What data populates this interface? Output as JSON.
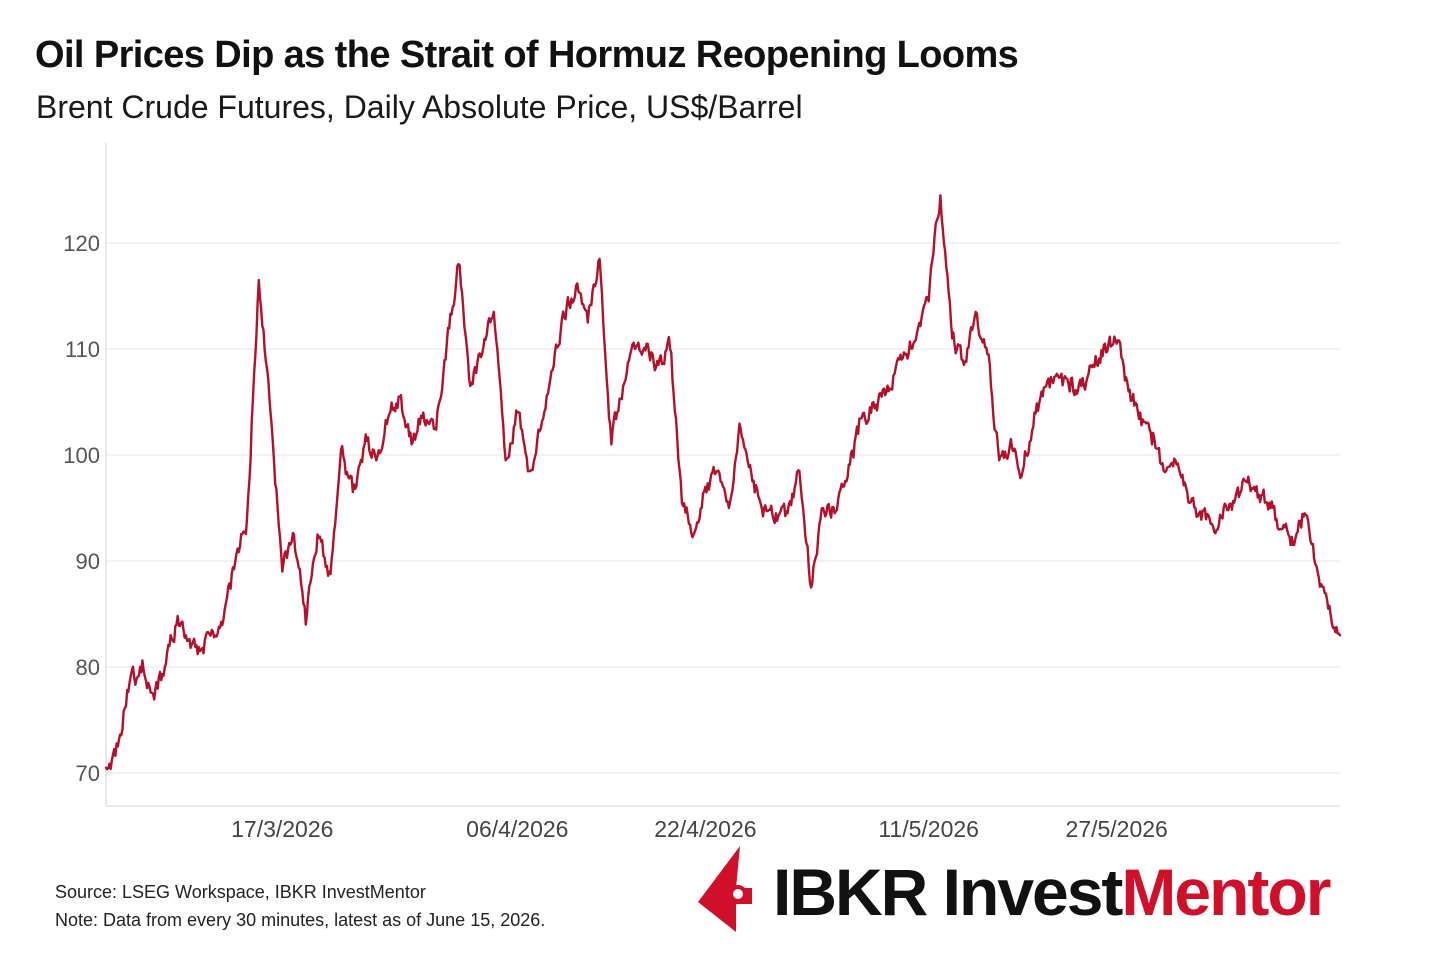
{
  "header": {
    "title": "Oil Prices Dip as the Strait of Hormuz Reopening Looms",
    "subtitle": "Brent Crude Futures, Daily Absolute Price, US$/Barrel"
  },
  "footer": {
    "source": "Source: LSEG Workspace, IBKR InvestMentor",
    "note": "Note: Data from every 30 minutes, latest as of June 15, 2026."
  },
  "brand": {
    "name_part1": "IBKR Invest",
    "name_part2": "Mentor",
    "accent_color": "#d0102a",
    "icon": "ibkr-flag-icon"
  },
  "chart_data": {
    "type": "line",
    "title": "Oil Prices Dip as the Strait of Hormuz Reopening Looms",
    "subtitle": "Brent Crude Futures, Daily Absolute Price, US$/Barrel",
    "xlabel": "",
    "ylabel": "",
    "ylim": [
      67,
      128
    ],
    "yticks": [
      70,
      80,
      90,
      100,
      110,
      120
    ],
    "xticks": [
      "17/3/2026",
      "06/4/2026",
      "22/4/2026",
      "11/5/2026",
      "27/5/2026"
    ],
    "grid": "horizontal",
    "legend": "none",
    "series": [
      {
        "color": "#b5102a",
        "points": [
          [
            "2026-03-02",
            70.5
          ],
          [
            "2026-03-03",
            72.5
          ],
          [
            "2026-03-04",
            78.5
          ],
          [
            "2026-03-05",
            79.5
          ],
          [
            "2026-03-06",
            77.5
          ],
          [
            "2026-03-07",
            80.0
          ],
          [
            "2026-03-08",
            84.0
          ],
          [
            "2026-03-09",
            82.5
          ],
          [
            "2026-03-10",
            81.5
          ],
          [
            "2026-03-11",
            83.5
          ],
          [
            "2026-03-12",
            84.5
          ],
          [
            "2026-03-13",
            90.0
          ],
          [
            "2026-03-14",
            94.0
          ],
          [
            "2026-03-15",
            116.5
          ],
          [
            "2026-03-16",
            104.0
          ],
          [
            "2026-03-17",
            89.0
          ],
          [
            "2026-03-18",
            92.5
          ],
          [
            "2026-03-19",
            84.0
          ],
          [
            "2026-03-20",
            92.5
          ],
          [
            "2026-03-21",
            89.0
          ],
          [
            "2026-03-22",
            100.5
          ],
          [
            "2026-03-23",
            96.5
          ],
          [
            "2026-03-24",
            101.0
          ],
          [
            "2026-03-25",
            99.5
          ],
          [
            "2026-03-26",
            103.5
          ],
          [
            "2026-03-27",
            105.5
          ],
          [
            "2026-03-28",
            101.0
          ],
          [
            "2026-03-29",
            104.0
          ],
          [
            "2026-03-30",
            102.5
          ],
          [
            "2026-03-31",
            110.5
          ],
          [
            "2026-04-01",
            118.0
          ],
          [
            "2026-04-02",
            106.5
          ],
          [
            "2026-04-03",
            109.5
          ],
          [
            "2026-04-04",
            113.5
          ],
          [
            "2026-04-05",
            99.5
          ],
          [
            "2026-04-06",
            104.0
          ],
          [
            "2026-04-07",
            98.5
          ],
          [
            "2026-04-08",
            102.5
          ],
          [
            "2026-04-09",
            108.0
          ],
          [
            "2026-04-10",
            113.0
          ],
          [
            "2026-04-11",
            116.0
          ],
          [
            "2026-04-12",
            112.5
          ],
          [
            "2026-04-13",
            118.5
          ],
          [
            "2026-04-14",
            101.0
          ],
          [
            "2026-04-15",
            106.5
          ],
          [
            "2026-04-16",
            110.0
          ],
          [
            "2026-04-17",
            110.5
          ],
          [
            "2026-04-18",
            108.5
          ],
          [
            "2026-04-19",
            110.0
          ],
          [
            "2026-04-20",
            95.5
          ],
          [
            "2026-04-21",
            92.5
          ],
          [
            "2026-04-22",
            97.0
          ],
          [
            "2026-04-23",
            98.5
          ],
          [
            "2026-04-24",
            95.0
          ],
          [
            "2026-04-25",
            102.5
          ],
          [
            "2026-04-26",
            97.5
          ],
          [
            "2026-04-27",
            95.0
          ],
          [
            "2026-04-28",
            94.5
          ],
          [
            "2026-04-29",
            94.5
          ],
          [
            "2026-04-30",
            98.5
          ],
          [
            "2026-05-01",
            87.5
          ],
          [
            "2026-05-02",
            95.0
          ],
          [
            "2026-05-03",
            94.5
          ],
          [
            "2026-05-04",
            97.5
          ],
          [
            "2026-05-05",
            102.0
          ],
          [
            "2026-05-06",
            104.5
          ],
          [
            "2026-05-07",
            105.5
          ],
          [
            "2026-05-08",
            107.5
          ],
          [
            "2026-05-09",
            109.5
          ],
          [
            "2026-05-10",
            111.5
          ],
          [
            "2026-05-11",
            114.5
          ],
          [
            "2026-05-12",
            124.5
          ],
          [
            "2026-05-13",
            111.0
          ],
          [
            "2026-05-14",
            108.5
          ],
          [
            "2026-05-15",
            113.5
          ],
          [
            "2026-05-16",
            109.5
          ],
          [
            "2026-05-17",
            99.5
          ],
          [
            "2026-05-18",
            101.5
          ],
          [
            "2026-05-19",
            98.5
          ],
          [
            "2026-05-20",
            104.0
          ],
          [
            "2026-05-21",
            106.5
          ],
          [
            "2026-05-22",
            107.5
          ],
          [
            "2026-05-23",
            106.0
          ],
          [
            "2026-05-24",
            106.5
          ],
          [
            "2026-05-25",
            108.5
          ],
          [
            "2026-05-26",
            110.5
          ],
          [
            "2026-05-27",
            110.5
          ],
          [
            "2026-05-28",
            106.0
          ],
          [
            "2026-05-29",
            104.0
          ],
          [
            "2026-05-30",
            101.0
          ],
          [
            "2026-05-31",
            98.5
          ],
          [
            "2026-06-01",
            99.5
          ],
          [
            "2026-06-02",
            96.5
          ],
          [
            "2026-06-03",
            94.5
          ],
          [
            "2026-06-04",
            93.5
          ],
          [
            "2026-06-05",
            94.0
          ],
          [
            "2026-06-06",
            95.5
          ],
          [
            "2026-06-07",
            97.5
          ],
          [
            "2026-06-08",
            96.0
          ],
          [
            "2026-06-09",
            95.5
          ],
          [
            "2026-06-10",
            93.0
          ],
          [
            "2026-06-11",
            91.5
          ],
          [
            "2026-06-12",
            94.5
          ],
          [
            "2026-06-13",
            89.5
          ],
          [
            "2026-06-14",
            85.5
          ],
          [
            "2026-06-15",
            83.0
          ]
        ]
      }
    ]
  }
}
